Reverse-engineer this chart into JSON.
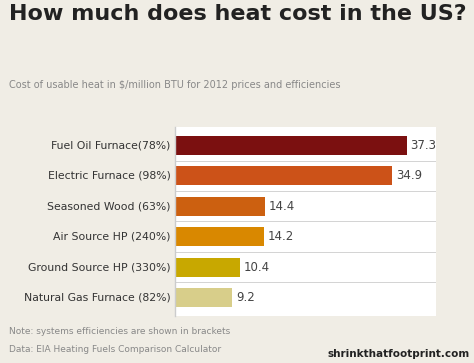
{
  "title": "How much does heat cost in the US?",
  "subtitle": "Cost of usable heat in $/million BTU for 2012 prices and efficiencies",
  "categories": [
    "Fuel Oil Furnace(78%)",
    "Electric Furnace (98%)",
    "Seasoned Wood (63%)",
    "Air Source HP (240%)",
    "Ground Source HP (330%)",
    "Natural Gas Furnace (82%)"
  ],
  "values": [
    37.3,
    34.9,
    14.4,
    14.2,
    10.4,
    9.2
  ],
  "colors": [
    "#7B1010",
    "#CC5218",
    "#CC6010",
    "#D98800",
    "#C8A800",
    "#D8CE8A"
  ],
  "fig_bg_color": "#F0EDE5",
  "plot_bg_color": "#FFFFFF",
  "title_color": "#222222",
  "subtitle_color": "#888888",
  "label_color": "#333333",
  "value_color": "#444444",
  "note_color": "#888888",
  "brand_color": "#222222",
  "note_line1": "Note: systems efficiencies are shown in brackets",
  "note_line2": "Data: EIA Heating Fuels Comparison Calculator",
  "brand": "shrinkthatfootprint.com",
  "xlim": [
    0,
    42
  ],
  "bar_height": 0.62,
  "separator_color": "#CCCCCC"
}
